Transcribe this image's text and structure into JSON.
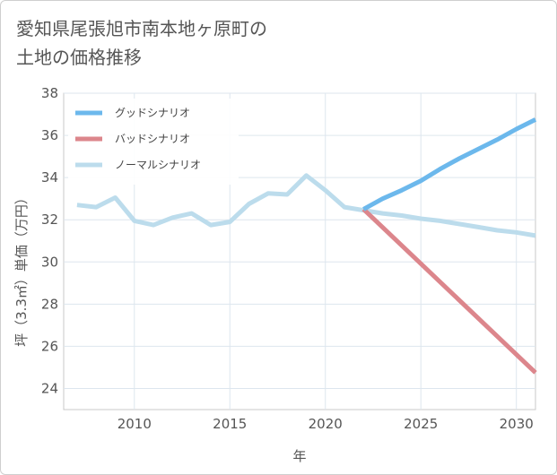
{
  "chart_data": {
    "type": "line",
    "title": "愛知県尾張旭市南本地ヶ原町の\n土地の価格推移",
    "xlabel": "年",
    "ylabel": "坪（3.3㎡）単価（万円）",
    "xlim": [
      2006.3,
      2031
    ],
    "ylim": [
      23,
      38
    ],
    "x_ticks": [
      2010,
      2015,
      2020,
      2025,
      2030
    ],
    "y_ticks": [
      24,
      26,
      28,
      30,
      32,
      34,
      36,
      38
    ],
    "grid": true,
    "legend_position": "top-left",
    "series": [
      {
        "name": "グッドシナリオ",
        "color": "#6cb8ec",
        "x": [
          2022,
          2023,
          2024,
          2025,
          2026,
          2027,
          2028,
          2029,
          2030,
          2031
        ],
        "y": [
          32.5,
          33.0,
          33.4,
          33.85,
          34.4,
          34.9,
          35.35,
          35.8,
          36.3,
          36.75
        ]
      },
      {
        "name": "バッドシナリオ",
        "color": "#dc868c",
        "x": [
          2022,
          2031
        ],
        "y": [
          32.5,
          24.75
        ]
      },
      {
        "name": "ノーマルシナリオ",
        "color": "#bcdcec",
        "x": [
          2007,
          2008,
          2009,
          2010,
          2011,
          2012,
          2013,
          2014,
          2015,
          2016,
          2017,
          2018,
          2019,
          2020,
          2021,
          2022,
          2023,
          2024,
          2025,
          2026,
          2027,
          2028,
          2029,
          2030,
          2031
        ],
        "y": [
          32.7,
          32.6,
          33.05,
          31.95,
          31.75,
          32.1,
          32.3,
          31.75,
          31.9,
          32.75,
          33.25,
          33.2,
          34.1,
          33.4,
          32.6,
          32.45,
          32.3,
          32.2,
          32.05,
          31.95,
          31.8,
          31.65,
          31.5,
          31.4,
          31.25
        ]
      }
    ]
  }
}
